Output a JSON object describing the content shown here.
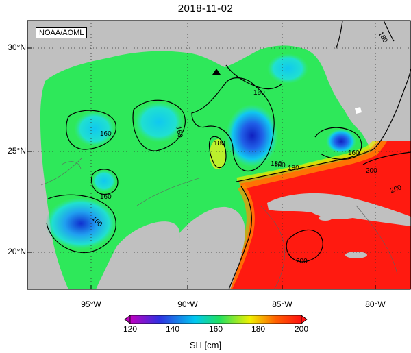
{
  "title": "2018-11-02",
  "credit": "NOAA/AOML",
  "lat_labels": [
    "30°N",
    "25°N",
    "20°N"
  ],
  "lon_labels": [
    "95°W",
    "90°W",
    "85°W",
    "80°W"
  ],
  "colorbar": {
    "ticks": [
      "120",
      "140",
      "160",
      "180",
      "200"
    ],
    "label": "SH [cm]",
    "colors": [
      "#c000c0",
      "#3030e0",
      "#00c8f0",
      "#20e060",
      "#f0f000",
      "#ff6000",
      "#ff1010"
    ]
  },
  "contour_labels": [
    "160",
    "160",
    "160",
    "160",
    "160",
    "180",
    "180",
    "180",
    "180",
    "200",
    "200",
    "200",
    "160",
    "160"
  ],
  "colors": {
    "land": "#c0c0c0",
    "ocean_green": "#2ee85a",
    "loop_current_red": "#ff1a10",
    "eddy_blue": "#2050e0",
    "cyan": "#10d8e8"
  }
}
